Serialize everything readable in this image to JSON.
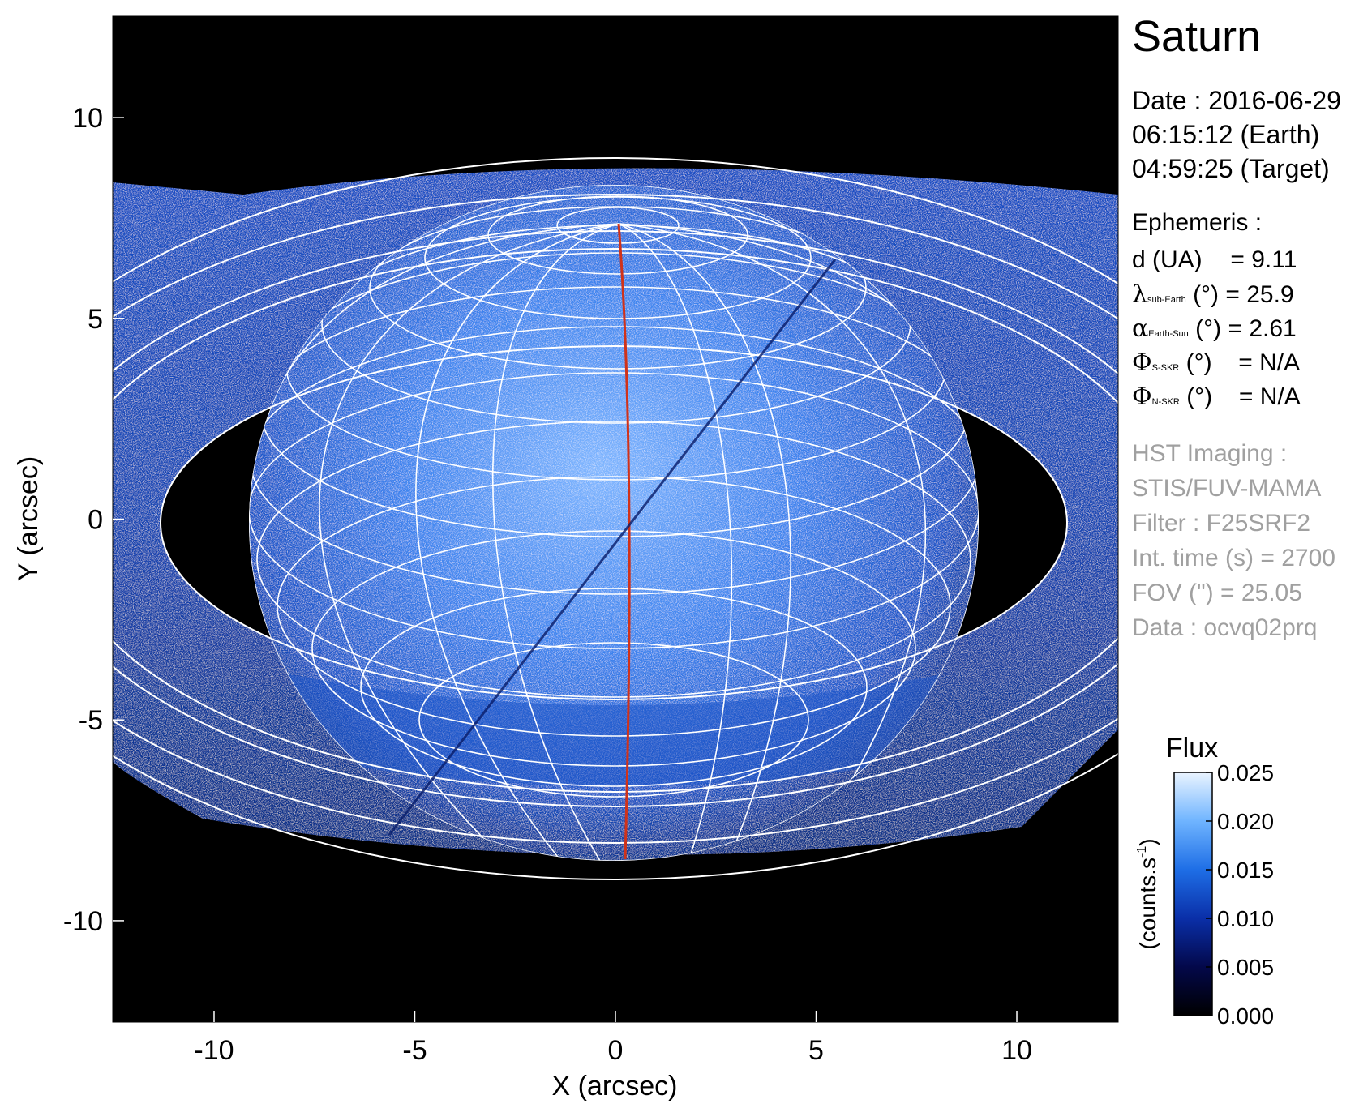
{
  "figure": {
    "title": "Saturn",
    "date_lines": [
      "Date : 2016-06-29",
      "06:15:12 (Earth)",
      "04:59:25 (Target)"
    ],
    "ephemeris": {
      "heading": "Ephemeris :",
      "rows": [
        {
          "label": "d (UA)",
          "sym": "",
          "sub": "",
          "unit": "",
          "value": "= 9.11"
        },
        {
          "label": "",
          "sym": "λ",
          "sub": "sub-Earth",
          "unit": "(°)",
          "value": "= 25.9"
        },
        {
          "label": "",
          "sym": "α",
          "sub": "Earth-Sun",
          "unit": "(°)",
          "value": "= 2.61"
        },
        {
          "label": "",
          "sym": "Φ",
          "sub": "S-SKR",
          "unit": "(°)",
          "value": "= N/A"
        },
        {
          "label": "",
          "sym": "Φ",
          "sub": "N-SKR",
          "unit": "(°)",
          "value": "= N/A"
        }
      ]
    },
    "imaging": {
      "heading": "HST Imaging :",
      "lines": [
        "STIS/FUV-MAMA",
        "Filter : F25SRF2",
        "Int. time (s) = 2700",
        "FOV (\") = 25.05",
        "Data : ocvq02prq"
      ]
    },
    "colorbar": {
      "title": "Flux",
      "label": "(counts.s",
      "label_sup": "-1",
      "label_end": ")",
      "ticks": [
        "0.000",
        "0.005",
        "0.010",
        "0.015",
        "0.020",
        "0.025"
      ],
      "tick_values": [
        0.0,
        0.005,
        0.01,
        0.015,
        0.02,
        0.025
      ],
      "range": [
        0.0,
        0.025
      ],
      "colors": [
        "#000000",
        "#03084a",
        "#0a2fa8",
        "#1e6ee6",
        "#6fb4ff",
        "#eaf4ff"
      ]
    },
    "axes": {
      "xlabel": "X (arcsec)",
      "ylabel": "Y (arcsec)",
      "xticks": [
        "-10",
        "-5",
        "0",
        "5",
        "10"
      ],
      "yticks": [
        "10",
        "5",
        "0",
        "-5",
        "-10"
      ],
      "x_values": [
        -10,
        -5,
        0,
        5,
        10
      ],
      "y_values": [
        10,
        5,
        0,
        -5,
        -10
      ],
      "range": [
        -12.525,
        12.525
      ]
    },
    "colors": {
      "background": "#000000",
      "planet": "#3a7ae8",
      "grid": "#ffffff",
      "meridian": "#d0321a"
    }
  }
}
